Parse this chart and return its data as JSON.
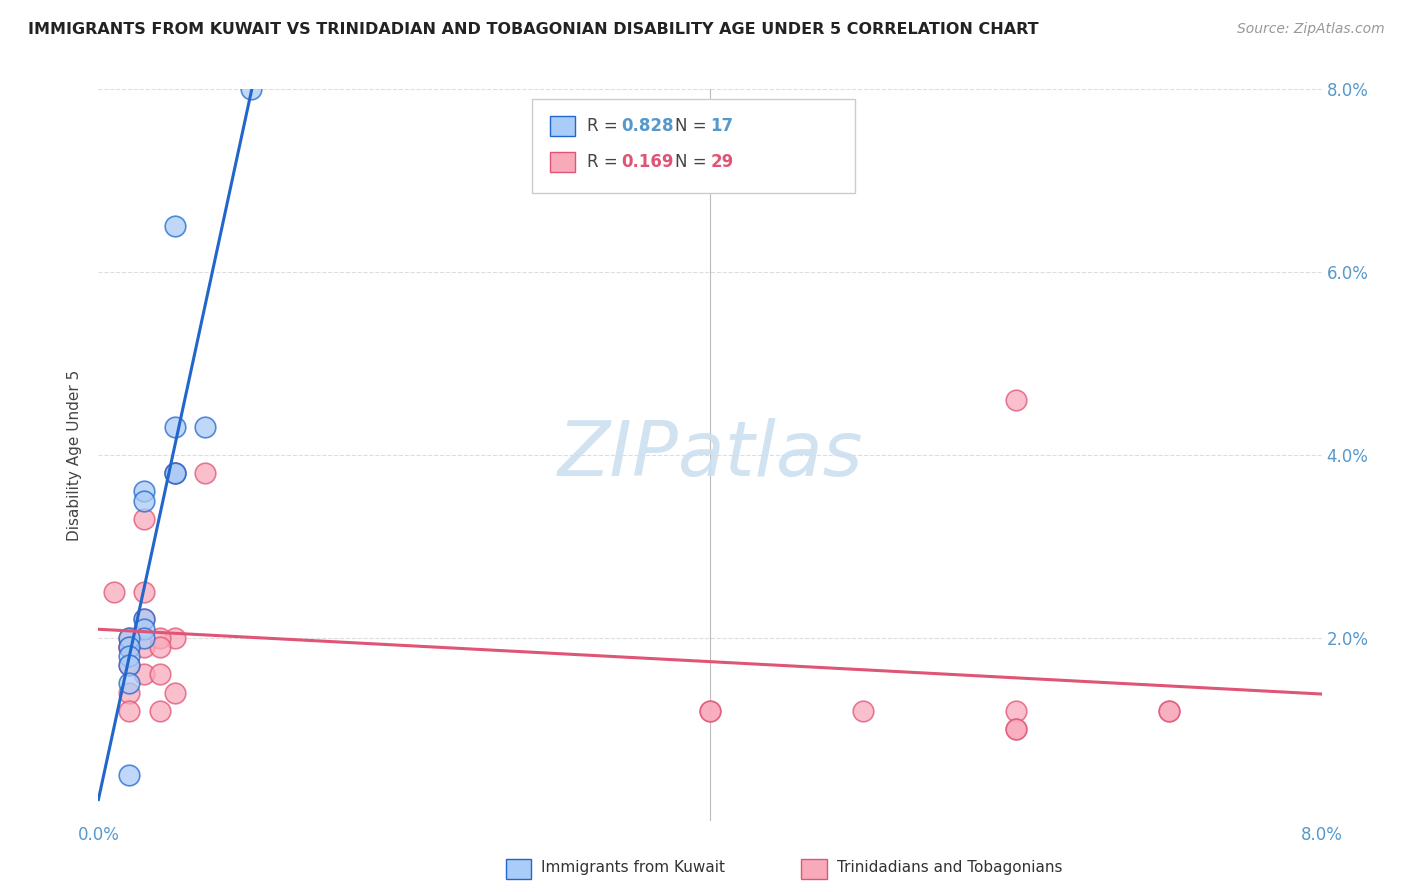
{
  "title": "IMMIGRANTS FROM KUWAIT VS TRINIDADIAN AND TOBAGONIAN DISABILITY AGE UNDER 5 CORRELATION CHART",
  "source": "Source: ZipAtlas.com",
  "ylabel": "Disability Age Under 5",
  "watermark": "ZIPatlas",
  "kuwait_R": "0.828",
  "kuwait_N": "17",
  "tt_R": "0.169",
  "tt_N": "29",
  "legend_kuwait": "Immigrants from Kuwait",
  "legend_tt": "Trinidadians and Tobagonians",
  "kuwait_color": "#aaccf8",
  "kuwait_line_color": "#2266cc",
  "tt_color": "#f8aabb",
  "tt_line_color": "#e05575",
  "kuwait_x": [
    0.005,
    0.005,
    0.01,
    0.005,
    0.005,
    0.003,
    0.003,
    0.007,
    0.003,
    0.003,
    0.003,
    0.002,
    0.002,
    0.002,
    0.002,
    0.002,
    0.002
  ],
  "kuwait_y": [
    0.038,
    0.038,
    0.08,
    0.065,
    0.043,
    0.036,
    0.035,
    0.043,
    0.022,
    0.021,
    0.02,
    0.02,
    0.019,
    0.018,
    0.017,
    0.015,
    0.005
  ],
  "tt_x": [
    0.007,
    0.001,
    0.003,
    0.005,
    0.005,
    0.003,
    0.003,
    0.002,
    0.002,
    0.003,
    0.003,
    0.002,
    0.002,
    0.002,
    0.002,
    0.004,
    0.004,
    0.004,
    0.005,
    0.004,
    0.06,
    0.05,
    0.04,
    0.04,
    0.06,
    0.07,
    0.06,
    0.06,
    0.07
  ],
  "tt_y": [
    0.038,
    0.025,
    0.033,
    0.038,
    0.02,
    0.025,
    0.022,
    0.02,
    0.019,
    0.019,
    0.016,
    0.019,
    0.017,
    0.014,
    0.012,
    0.02,
    0.019,
    0.016,
    0.014,
    0.012,
    0.046,
    0.012,
    0.012,
    0.012,
    0.012,
    0.012,
    0.01,
    0.01,
    0.012
  ],
  "xlim": [
    0.0,
    0.08
  ],
  "ylim": [
    0.0,
    0.08
  ],
  "yticks": [
    0.0,
    0.02,
    0.04,
    0.06,
    0.08
  ],
  "ytick_labels_right": [
    "",
    "2.0%",
    "4.0%",
    "6.0%",
    "8.0%"
  ],
  "grid_color": "#dddddd",
  "background_color": "#ffffff",
  "mid_vline_x": 0.04
}
